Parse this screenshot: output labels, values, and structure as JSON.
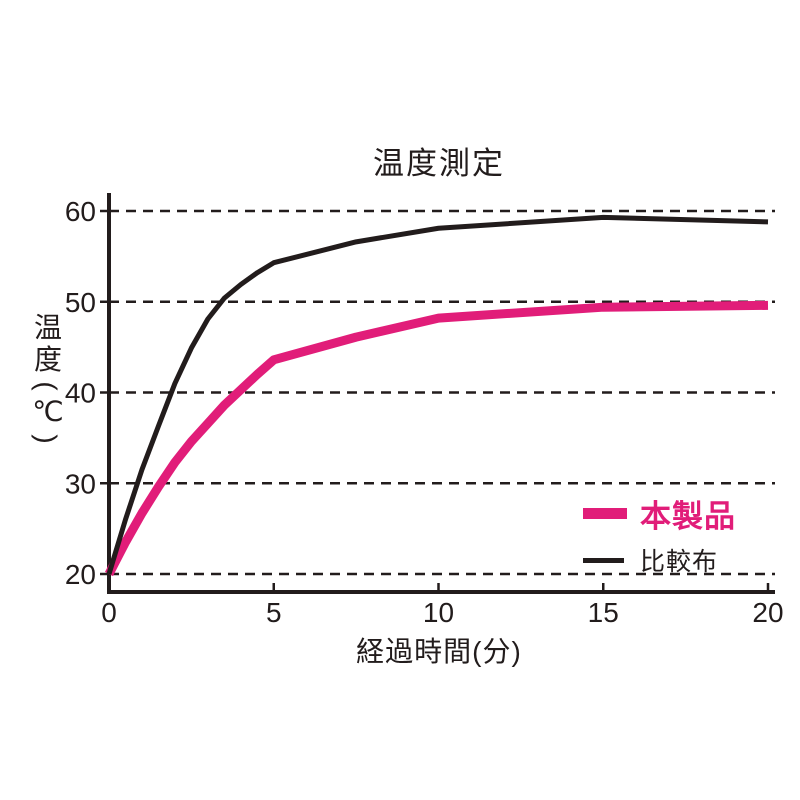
{
  "page": {
    "background": "#ffffff",
    "text_color": "#221c1c"
  },
  "chart_data": {
    "type": "line",
    "title": "温度測定",
    "xlabel": "経過時間(分)",
    "ylabel": "温度(℃)",
    "x_ticks": [
      0,
      5,
      10,
      15,
      20
    ],
    "y_ticks": [
      20,
      30,
      40,
      50,
      60
    ],
    "xlim": [
      0,
      20
    ],
    "ylim": [
      20,
      60
    ],
    "grid": "horizontal-dashed",
    "legend_position": "inside-lower-right",
    "axis_color": "#221c1c",
    "series": [
      {
        "name": "本製品",
        "color": "#e11d79",
        "line_width": 9,
        "x": [
          0,
          0.5,
          1,
          1.5,
          2,
          2.5,
          3,
          3.5,
          4,
          4.5,
          5,
          7.5,
          10,
          15,
          20
        ],
        "y": [
          20,
          23.5,
          26.7,
          29.6,
          32.3,
          34.6,
          36.6,
          38.6,
          40.3,
          42.0,
          43.6,
          46.1,
          48.2,
          49.4,
          49.6
        ]
      },
      {
        "name": "比較布",
        "color": "#221c1c",
        "line_width": 5,
        "x": [
          0,
          0.5,
          1,
          1.5,
          2,
          2.5,
          3,
          3.5,
          4,
          4.5,
          5,
          7.5,
          10,
          15,
          20
        ],
        "y": [
          20,
          26.0,
          31.5,
          36.3,
          41.0,
          44.9,
          48.1,
          50.4,
          51.9,
          53.2,
          54.3,
          56.6,
          58.1,
          59.3,
          58.8
        ]
      }
    ]
  }
}
